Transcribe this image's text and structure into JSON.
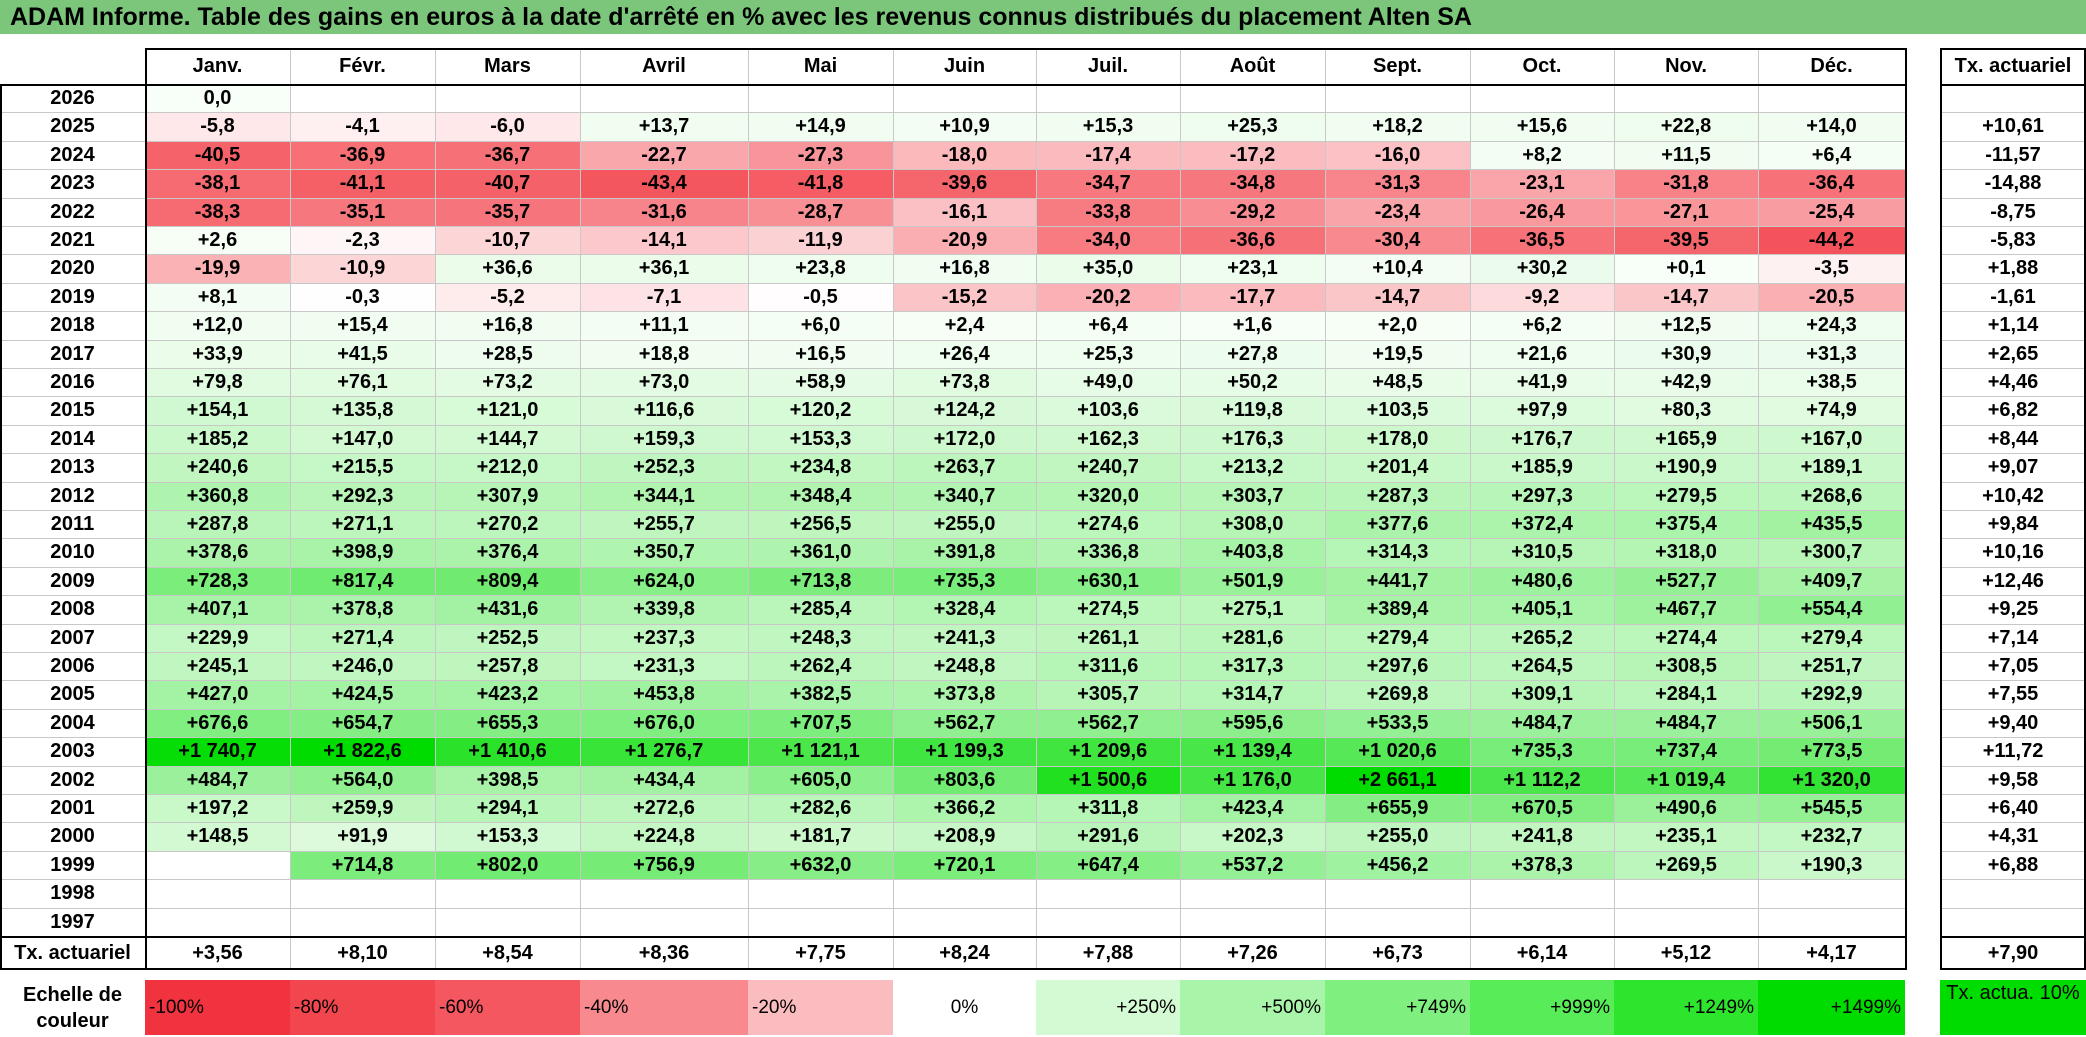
{
  "title": "ADAM Informe. Table des gains en euros à la date d'arrêté en % avec les revenus connus distribués du placement Alten SA",
  "months": [
    "Janv.",
    "Févr.",
    "Mars",
    "Avril",
    "Mai",
    "Juin",
    "Juil.",
    "Août",
    "Sept.",
    "Oct.",
    "Nov.",
    "Déc."
  ],
  "rate_header": "Tx. actuariel",
  "footer_label": "Tx. actuariel",
  "scale_label": "Echelle de couleur",
  "scale_rate_label": "Tx. actua. 10%",
  "chart_data": {
    "type": "table",
    "title": "ADAM Informe. Table des gains en euros à la date d'arrêté en % avec les revenus connus distribués du placement Alten SA",
    "columns": [
      "Janv.",
      "Févr.",
      "Mars",
      "Avril",
      "Mai",
      "Juin",
      "Juil.",
      "Août",
      "Sept.",
      "Oct.",
      "Nov.",
      "Déc."
    ],
    "rows": [
      {
        "year": "2026",
        "values": [
          "0,0",
          "",
          "",
          "",
          "",
          "",
          "",
          "",
          "",
          "",
          "",
          ""
        ],
        "rate": ""
      },
      {
        "year": "2025",
        "values": [
          "-5,8",
          "-4,1",
          "-6,0",
          "+13,7",
          "+14,9",
          "+10,9",
          "+15,3",
          "+25,3",
          "+18,2",
          "+15,6",
          "+22,8",
          "+14,0"
        ],
        "rate": "+10,61"
      },
      {
        "year": "2024",
        "values": [
          "-40,5",
          "-36,9",
          "-36,7",
          "-22,7",
          "-27,3",
          "-18,0",
          "-17,4",
          "-17,2",
          "-16,0",
          "+8,2",
          "+11,5",
          "+6,4"
        ],
        "rate": "-11,57"
      },
      {
        "year": "2023",
        "values": [
          "-38,1",
          "-41,1",
          "-40,7",
          "-43,4",
          "-41,8",
          "-39,6",
          "-34,7",
          "-34,8",
          "-31,3",
          "-23,1",
          "-31,8",
          "-36,4"
        ],
        "rate": "-14,88"
      },
      {
        "year": "2022",
        "values": [
          "-38,3",
          "-35,1",
          "-35,7",
          "-31,6",
          "-28,7",
          "-16,1",
          "-33,8",
          "-29,2",
          "-23,4",
          "-26,4",
          "-27,1",
          "-25,4"
        ],
        "rate": "-8,75"
      },
      {
        "year": "2021",
        "values": [
          "+2,6",
          "-2,3",
          "-10,7",
          "-14,1",
          "-11,9",
          "-20,9",
          "-34,0",
          "-36,6",
          "-30,4",
          "-36,5",
          "-39,5",
          "-44,2"
        ],
        "rate": "-5,83"
      },
      {
        "year": "2020",
        "values": [
          "-19,9",
          "-10,9",
          "+36,6",
          "+36,1",
          "+23,8",
          "+16,8",
          "+35,0",
          "+23,1",
          "+10,4",
          "+30,2",
          "+0,1",
          "-3,5"
        ],
        "rate": "+1,88"
      },
      {
        "year": "2019",
        "values": [
          "+8,1",
          "-0,3",
          "-5,2",
          "-7,1",
          "-0,5",
          "-15,2",
          "-20,2",
          "-17,7",
          "-14,7",
          "-9,2",
          "-14,7",
          "-20,5"
        ],
        "rate": "-1,61"
      },
      {
        "year": "2018",
        "values": [
          "+12,0",
          "+15,4",
          "+16,8",
          "+11,1",
          "+6,0",
          "+2,4",
          "+6,4",
          "+1,6",
          "+2,0",
          "+6,2",
          "+12,5",
          "+24,3"
        ],
        "rate": "+1,14"
      },
      {
        "year": "2017",
        "values": [
          "+33,9",
          "+41,5",
          "+28,5",
          "+18,8",
          "+16,5",
          "+26,4",
          "+25,3",
          "+27,8",
          "+19,5",
          "+21,6",
          "+30,9",
          "+31,3"
        ],
        "rate": "+2,65"
      },
      {
        "year": "2016",
        "values": [
          "+79,8",
          "+76,1",
          "+73,2",
          "+73,0",
          "+58,9",
          "+73,8",
          "+49,0",
          "+50,2",
          "+48,5",
          "+41,9",
          "+42,9",
          "+38,5"
        ],
        "rate": "+4,46"
      },
      {
        "year": "2015",
        "values": [
          "+154,1",
          "+135,8",
          "+121,0",
          "+116,6",
          "+120,2",
          "+124,2",
          "+103,6",
          "+119,8",
          "+103,5",
          "+97,9",
          "+80,3",
          "+74,9"
        ],
        "rate": "+6,82"
      },
      {
        "year": "2014",
        "values": [
          "+185,2",
          "+147,0",
          "+144,7",
          "+159,3",
          "+153,3",
          "+172,0",
          "+162,3",
          "+176,3",
          "+178,0",
          "+176,7",
          "+165,9",
          "+167,0"
        ],
        "rate": "+8,44"
      },
      {
        "year": "2013",
        "values": [
          "+240,6",
          "+215,5",
          "+212,0",
          "+252,3",
          "+234,8",
          "+263,7",
          "+240,7",
          "+213,2",
          "+201,4",
          "+185,9",
          "+190,9",
          "+189,1"
        ],
        "rate": "+9,07"
      },
      {
        "year": "2012",
        "values": [
          "+360,8",
          "+292,3",
          "+307,9",
          "+344,1",
          "+348,4",
          "+340,7",
          "+320,0",
          "+303,7",
          "+287,3",
          "+297,3",
          "+279,5",
          "+268,6"
        ],
        "rate": "+10,42"
      },
      {
        "year": "2011",
        "values": [
          "+287,8",
          "+271,1",
          "+270,2",
          "+255,7",
          "+256,5",
          "+255,0",
          "+274,6",
          "+308,0",
          "+377,6",
          "+372,4",
          "+375,4",
          "+435,5"
        ],
        "rate": "+9,84"
      },
      {
        "year": "2010",
        "values": [
          "+378,6",
          "+398,9",
          "+376,4",
          "+350,7",
          "+361,0",
          "+391,8",
          "+336,8",
          "+403,8",
          "+314,3",
          "+310,5",
          "+318,0",
          "+300,7"
        ],
        "rate": "+10,16"
      },
      {
        "year": "2009",
        "values": [
          "+728,3",
          "+817,4",
          "+809,4",
          "+624,0",
          "+713,8",
          "+735,3",
          "+630,1",
          "+501,9",
          "+441,7",
          "+480,6",
          "+527,7",
          "+409,7"
        ],
        "rate": "+12,46"
      },
      {
        "year": "2008",
        "values": [
          "+407,1",
          "+378,8",
          "+431,6",
          "+339,8",
          "+285,4",
          "+328,4",
          "+274,5",
          "+275,1",
          "+389,4",
          "+405,1",
          "+467,7",
          "+554,4"
        ],
        "rate": "+9,25"
      },
      {
        "year": "2007",
        "values": [
          "+229,9",
          "+271,4",
          "+252,5",
          "+237,3",
          "+248,3",
          "+241,3",
          "+261,1",
          "+281,6",
          "+279,4",
          "+265,2",
          "+274,4",
          "+279,4"
        ],
        "rate": "+7,14"
      },
      {
        "year": "2006",
        "values": [
          "+245,1",
          "+246,0",
          "+257,8",
          "+231,3",
          "+262,4",
          "+248,8",
          "+311,6",
          "+317,3",
          "+297,6",
          "+264,5",
          "+308,5",
          "+251,7"
        ],
        "rate": "+7,05"
      },
      {
        "year": "2005",
        "values": [
          "+427,0",
          "+424,5",
          "+423,2",
          "+453,8",
          "+382,5",
          "+373,8",
          "+305,7",
          "+314,7",
          "+269,8",
          "+309,1",
          "+284,1",
          "+292,9"
        ],
        "rate": "+7,55"
      },
      {
        "year": "2004",
        "values": [
          "+676,6",
          "+654,7",
          "+655,3",
          "+676,0",
          "+707,5",
          "+562,7",
          "+562,7",
          "+595,6",
          "+533,5",
          "+484,7",
          "+484,7",
          "+506,1"
        ],
        "rate": "+9,40"
      },
      {
        "year": "2003",
        "values": [
          "+1 740,7",
          "+1 822,6",
          "+1 410,6",
          "+1 276,7",
          "+1 121,1",
          "+1 199,3",
          "+1 209,6",
          "+1 139,4",
          "+1 020,6",
          "+735,3",
          "+737,4",
          "+773,5"
        ],
        "rate": "+11,72"
      },
      {
        "year": "2002",
        "values": [
          "+484,7",
          "+564,0",
          "+398,5",
          "+434,4",
          "+605,0",
          "+803,6",
          "+1 500,6",
          "+1 176,0",
          "+2 661,1",
          "+1 112,2",
          "+1 019,4",
          "+1 320,0"
        ],
        "rate": "+9,58"
      },
      {
        "year": "2001",
        "values": [
          "+197,2",
          "+259,9",
          "+294,1",
          "+272,6",
          "+282,6",
          "+366,2",
          "+311,8",
          "+423,4",
          "+655,9",
          "+670,5",
          "+490,6",
          "+545,5"
        ],
        "rate": "+6,40"
      },
      {
        "year": "2000",
        "values": [
          "+148,5",
          "+91,9",
          "+153,3",
          "+224,8",
          "+181,7",
          "+208,9",
          "+291,6",
          "+202,3",
          "+255,0",
          "+241,8",
          "+235,1",
          "+232,7"
        ],
        "rate": "+4,31"
      },
      {
        "year": "1999",
        "values": [
          "",
          "+714,8",
          "+802,0",
          "+756,9",
          "+632,0",
          "+720,1",
          "+647,4",
          "+537,2",
          "+456,2",
          "+378,3",
          "+269,5",
          "+190,3"
        ],
        "rate": "+6,88"
      },
      {
        "year": "1998",
        "values": [
          "",
          "",
          "",
          "",
          "",
          "",
          "",
          "",
          "",
          "",
          "",
          ""
        ],
        "rate": ""
      },
      {
        "year": "1997",
        "values": [
          "",
          "",
          "",
          "",
          "",
          "",
          "",
          "",
          "",
          "",
          "",
          ""
        ],
        "rate": ""
      }
    ],
    "footer_rates": [
      "+3,56",
      "+8,10",
      "+8,54",
      "+8,36",
      "+7,75",
      "+8,24",
      "+7,88",
      "+7,26",
      "+6,73",
      "+6,14",
      "+5,12",
      "+4,17"
    ],
    "overall_rate": "+7,90",
    "color_scale": [
      {
        "label": "-100%",
        "color": "#f0333e"
      },
      {
        "label": "-80%",
        "color": "#f2464e"
      },
      {
        "label": "-60%",
        "color": "#f4575f"
      },
      {
        "label": "-40%",
        "color": "#f88a8f"
      },
      {
        "label": "-20%",
        "color": "#fbbcbf"
      },
      {
        "label": "0%",
        "color": "#ffffff"
      },
      {
        "label": "+250%",
        "color": "#d4fad4"
      },
      {
        "label": "+500%",
        "color": "#a8f4a8"
      },
      {
        "label": "+749%",
        "color": "#7ff07f"
      },
      {
        "label": "+999%",
        "color": "#58ec58"
      },
      {
        "label": "+1249%",
        "color": "#2ee52e"
      },
      {
        "label": "+1499%",
        "color": "#00dc00"
      }
    ],
    "rate_scale_color": "#00dc00"
  }
}
